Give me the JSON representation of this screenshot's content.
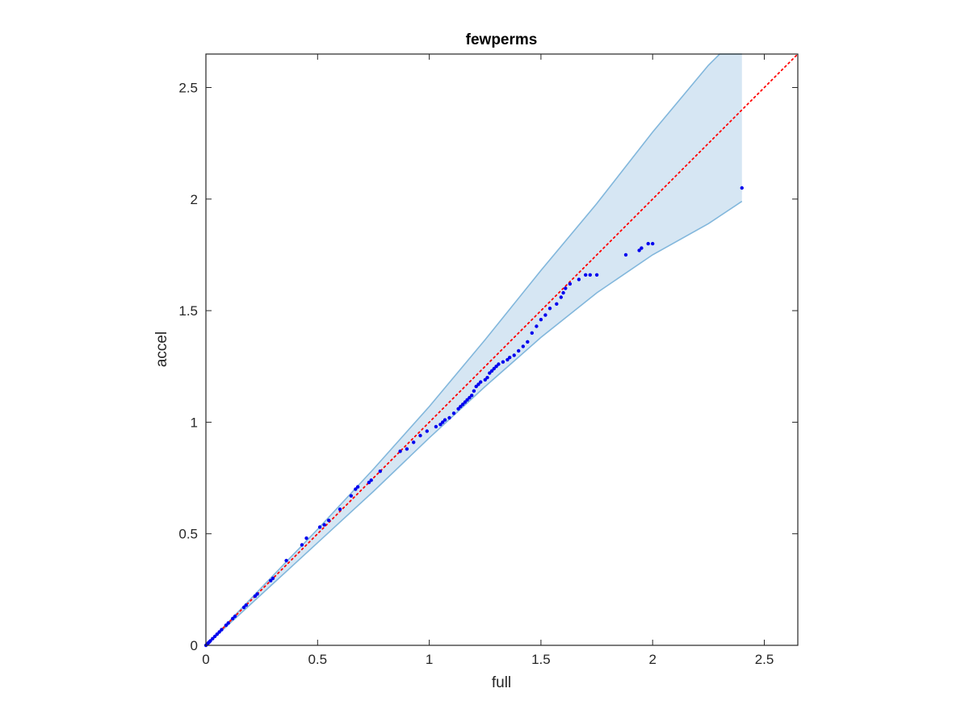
{
  "chart_data": {
    "type": "scatter",
    "title": "fewperms",
    "xlabel": "full",
    "ylabel": "accel",
    "xlim": [
      0,
      2.65
    ],
    "ylim": [
      0,
      2.65
    ],
    "xticks": [
      "0",
      "0.5",
      "1",
      "1.5",
      "2",
      "2.5"
    ],
    "yticks": [
      "0",
      "0.5",
      "1",
      "1.5",
      "2",
      "2.5"
    ],
    "xtick_values": [
      0,
      0.5,
      1,
      1.5,
      2,
      2.5
    ],
    "ytick_values": [
      0,
      0.5,
      1,
      1.5,
      2,
      2.5
    ],
    "grid": false,
    "colors": {
      "points": "#0000ee",
      "band_fill": "#d6e6f3",
      "band_edge": "#82b7dc",
      "reference": "#ff0000",
      "axes": "#262626"
    },
    "reference_line": {
      "style": "dotted",
      "x": [
        0,
        2.65
      ],
      "y": [
        0,
        2.65
      ]
    },
    "band": {
      "upper": {
        "x": [
          0,
          0.25,
          0.5,
          0.75,
          1.0,
          1.25,
          1.5,
          1.75,
          2.0,
          2.25,
          2.3,
          2.4
        ],
        "y": [
          0,
          0.26,
          0.52,
          0.79,
          1.07,
          1.37,
          1.68,
          1.98,
          2.3,
          2.6,
          2.65,
          2.65
        ]
      },
      "lower": {
        "x": [
          0,
          0.25,
          0.5,
          0.75,
          1.0,
          1.25,
          1.5,
          1.75,
          2.0,
          2.25,
          2.4
        ],
        "y": [
          0,
          0.23,
          0.46,
          0.69,
          0.93,
          1.16,
          1.38,
          1.58,
          1.75,
          1.89,
          1.99
        ]
      }
    },
    "series": [
      {
        "x": [
          0.0,
          0.005,
          0.01,
          0.015,
          0.02,
          0.03,
          0.04,
          0.05,
          0.06,
          0.07,
          0.09,
          0.1,
          0.12,
          0.13,
          0.17,
          0.18,
          0.22,
          0.23,
          0.29,
          0.3,
          0.36,
          0.43,
          0.45,
          0.51,
          0.53,
          0.55,
          0.6,
          0.65,
          0.67,
          0.68,
          0.73,
          0.74,
          0.78,
          0.87,
          0.9,
          0.93,
          0.96,
          0.99,
          1.03,
          1.05,
          1.06,
          1.07,
          1.09,
          1.11,
          1.13,
          1.14,
          1.15,
          1.16,
          1.17,
          1.18,
          1.19,
          1.2,
          1.21,
          1.22,
          1.23,
          1.25,
          1.26,
          1.27,
          1.28,
          1.29,
          1.3,
          1.31,
          1.33,
          1.35,
          1.36,
          1.38,
          1.4,
          1.42,
          1.44,
          1.46,
          1.48,
          1.5,
          1.52,
          1.54,
          1.57,
          1.59,
          1.6,
          1.61,
          1.63,
          1.67,
          1.7,
          1.72,
          1.75,
          1.88,
          1.94,
          1.95,
          1.98,
          2.0,
          2.4
        ],
        "y": [
          0.0,
          0.005,
          0.01,
          0.015,
          0.02,
          0.03,
          0.04,
          0.05,
          0.06,
          0.07,
          0.09,
          0.1,
          0.12,
          0.13,
          0.17,
          0.18,
          0.22,
          0.23,
          0.29,
          0.3,
          0.38,
          0.45,
          0.48,
          0.53,
          0.54,
          0.56,
          0.61,
          0.67,
          0.7,
          0.71,
          0.73,
          0.74,
          0.78,
          0.87,
          0.88,
          0.91,
          0.94,
          0.96,
          0.98,
          0.99,
          1.0,
          1.01,
          1.02,
          1.04,
          1.06,
          1.07,
          1.08,
          1.09,
          1.1,
          1.11,
          1.12,
          1.14,
          1.16,
          1.17,
          1.18,
          1.19,
          1.2,
          1.22,
          1.23,
          1.24,
          1.25,
          1.26,
          1.27,
          1.28,
          1.29,
          1.3,
          1.32,
          1.34,
          1.36,
          1.4,
          1.43,
          1.46,
          1.48,
          1.51,
          1.53,
          1.56,
          1.58,
          1.6,
          1.62,
          1.64,
          1.66,
          1.66,
          1.66,
          1.75,
          1.77,
          1.78,
          1.8,
          1.8,
          2.05
        ]
      }
    ]
  }
}
